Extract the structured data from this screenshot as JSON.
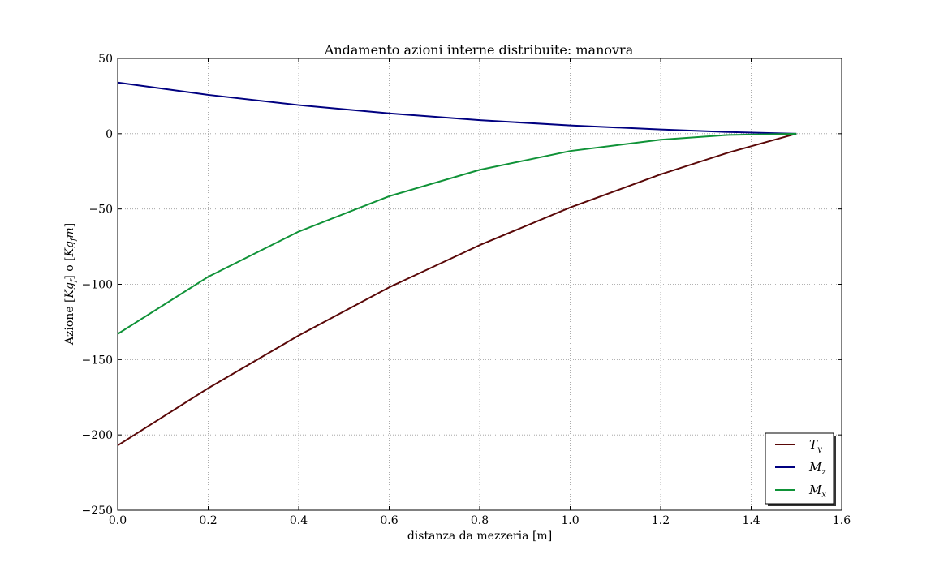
{
  "chart_data": {
    "type": "line",
    "title": "Andamento azioni interne distribuite: manovra",
    "xlabel": "distanza da mezzeria [m]",
    "ylabel": "Azione [Kg_f] o [Kg_f m]",
    "ylabel_parts": {
      "prefix": "Azione ",
      "unit1": "Kg",
      "unit1_sub": "f",
      "mid": " o ",
      "unit2": "Kg",
      "unit2_sub": "f",
      "unit2_suffix": "m"
    },
    "xlim": [
      0.0,
      1.6
    ],
    "ylim": [
      -250,
      50
    ],
    "xticks": [
      "0.0",
      "0.2",
      "0.4",
      "0.6",
      "0.8",
      "1.0",
      "1.2",
      "1.4",
      "1.6"
    ],
    "yticks": [
      "50",
      "0",
      "−50",
      "−100",
      "−150",
      "−200",
      "−250"
    ],
    "xtick_values": [
      0.0,
      0.2,
      0.4,
      0.6,
      0.8,
      1.0,
      1.2,
      1.4,
      1.6
    ],
    "ytick_values": [
      50,
      0,
      -50,
      -100,
      -150,
      -200,
      -250
    ],
    "grid": true,
    "legend_position": "lower-right",
    "x": [
      0.0,
      0.2,
      0.4,
      0.6,
      0.8,
      1.0,
      1.2,
      1.35,
      1.5
    ],
    "series": [
      {
        "name": "T_y",
        "name_main": "T",
        "name_sub": "y",
        "color": "#5a0808",
        "values": [
          -207,
          -169,
          -134,
          -102,
          -74,
          -49,
          -27,
          -12.5,
          0
        ]
      },
      {
        "name": "M_z",
        "name_main": "M",
        "name_sub": "z",
        "color": "#000080",
        "values": [
          34,
          25.8,
          19,
          13.5,
          9,
          5.5,
          2.8,
          1.1,
          0
        ]
      },
      {
        "name": "M_x",
        "name_main": "M",
        "name_sub": "x",
        "color": "#0f9237",
        "values": [
          -133,
          -95,
          -65,
          -41.5,
          -24,
          -11.5,
          -4,
          -0.8,
          0
        ]
      }
    ]
  }
}
